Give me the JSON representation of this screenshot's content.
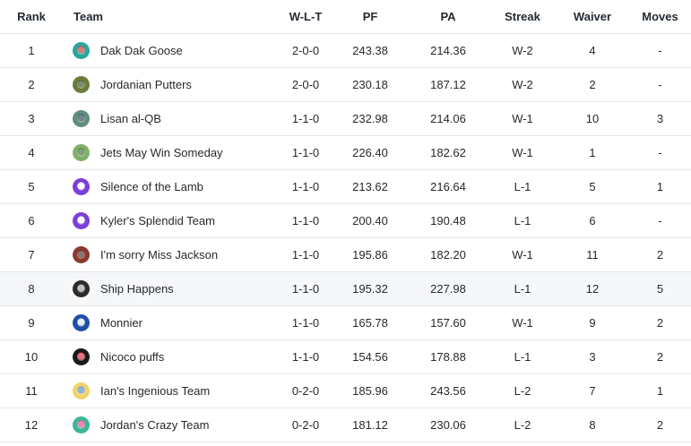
{
  "headers": {
    "rank": "Rank",
    "team": "Team",
    "wlt": "W-L-T",
    "pf": "PF",
    "pa": "PA",
    "streak": "Streak",
    "waiver": "Waiver",
    "moves": "Moves"
  },
  "rows": [
    {
      "rank": "1",
      "team": "Dak Dak Goose",
      "wlt": "2-0-0",
      "pf": "243.38",
      "pa": "214.36",
      "streak": "W-2",
      "waiver": "4",
      "moves": "-",
      "avatar_color": "#2aa6a0",
      "avatar_accent": "#c0392b"
    },
    {
      "rank": "2",
      "team": "Jordanian Putters",
      "wlt": "2-0-0",
      "pf": "230.18",
      "pa": "187.12",
      "streak": "W-2",
      "waiver": "2",
      "moves": "-",
      "avatar_color": "#6b7d3a",
      "avatar_accent": "#3c4a22"
    },
    {
      "rank": "3",
      "team": "Lisan al-QB",
      "wlt": "1-1-0",
      "pf": "232.98",
      "pa": "214.06",
      "streak": "W-1",
      "waiver": "10",
      "moves": "3",
      "avatar_color": "#5f8f7a",
      "avatar_accent": "#2c3e50"
    },
    {
      "rank": "4",
      "team": "Jets May Win Someday",
      "wlt": "1-1-0",
      "pf": "226.40",
      "pa": "182.62",
      "streak": "W-1",
      "waiver": "1",
      "moves": "-",
      "avatar_color": "#7fb069",
      "avatar_accent": "#3d6b3a"
    },
    {
      "rank": "5",
      "team": "Silence of the Lamb",
      "wlt": "1-1-0",
      "pf": "213.62",
      "pa": "216.64",
      "streak": "L-1",
      "waiver": "5",
      "moves": "1",
      "avatar_color": "#7b3fd9",
      "avatar_accent": "#ffffff"
    },
    {
      "rank": "6",
      "team": "Kyler's Splendid Team",
      "wlt": "1-1-0",
      "pf": "200.40",
      "pa": "190.48",
      "streak": "L-1",
      "waiver": "6",
      "moves": "-",
      "avatar_color": "#7b3fd9",
      "avatar_accent": "#ffffff"
    },
    {
      "rank": "7",
      "team": "I'm sorry Miss Jackson",
      "wlt": "1-1-0",
      "pf": "195.86",
      "pa": "182.20",
      "streak": "W-1",
      "waiver": "11",
      "moves": "2",
      "avatar_color": "#8b3a2f",
      "avatar_accent": "#4a2b1f"
    },
    {
      "rank": "8",
      "team": "Ship Happens",
      "wlt": "1-1-0",
      "pf": "195.32",
      "pa": "227.98",
      "streak": "L-1",
      "waiver": "12",
      "moves": "5",
      "avatar_color": "#2b2b2b",
      "avatar_accent": "#9aa0a6"
    },
    {
      "rank": "9",
      "team": "Monnier",
      "wlt": "1-1-0",
      "pf": "165.78",
      "pa": "157.60",
      "streak": "W-1",
      "waiver": "9",
      "moves": "2",
      "avatar_color": "#1f4fa8",
      "avatar_accent": "#dfe6f2"
    },
    {
      "rank": "10",
      "team": "Nicoco puffs",
      "wlt": "1-1-0",
      "pf": "154.56",
      "pa": "178.88",
      "streak": "L-1",
      "waiver": "3",
      "moves": "2",
      "avatar_color": "#1a1a1a",
      "avatar_accent": "#d7263d"
    },
    {
      "rank": "11",
      "team": "Ian's Ingenious Team",
      "wlt": "0-2-0",
      "pf": "185.96",
      "pa": "243.56",
      "streak": "L-2",
      "waiver": "7",
      "moves": "1",
      "avatar_color": "#f1d36b",
      "avatar_accent": "#4a90c2"
    },
    {
      "rank": "12",
      "team": "Jordan's Crazy Team",
      "wlt": "0-2-0",
      "pf": "181.12",
      "pa": "230.06",
      "streak": "L-2",
      "waiver": "8",
      "moves": "2",
      "avatar_color": "#3ab795",
      "avatar_accent": "#e84393"
    }
  ],
  "highlighted_row": 7
}
